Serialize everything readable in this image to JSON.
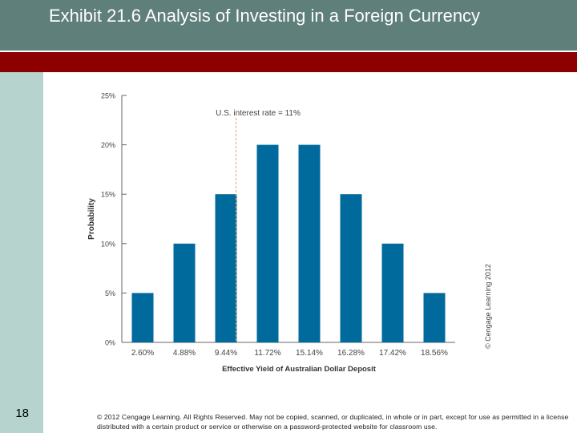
{
  "header": {
    "title_strong": "Exhibit 21.6",
    "title_rest": " Analysis of Investing in a Foreign Currency"
  },
  "slide_number": "18",
  "footer": {
    "copyright": "© 2012 Cengage Learning. All Rights Reserved. May not be copied, scanned, or duplicated, in whole or in part, except for use as permitted in a license distributed with a certain product or service or otherwise on a password-protected website for classroom use."
  },
  "colors": {
    "header_bg": "#5f7f7a",
    "red_band": "#8c0000",
    "side_bar": "#b6d3ce",
    "bar": "#006a9c",
    "reference_line": "#e8a46a"
  },
  "chart_data": {
    "type": "bar",
    "title": "",
    "xlabel": "Effective Yield of Australian Dollar Deposit",
    "ylabel": "Probability",
    "categories": [
      "2.60%",
      "4.88%",
      "9.44%",
      "11.72%",
      "15.14%",
      "16.28%",
      "17.42%",
      "18.56%"
    ],
    "values": [
      5,
      10,
      15,
      20,
      20,
      15,
      10,
      5
    ],
    "ylim": [
      0,
      25
    ],
    "yticks": [
      "0%",
      "5%",
      "10%",
      "15%",
      "20%",
      "25%"
    ],
    "yticks_values": [
      0,
      5,
      10,
      15,
      20,
      25
    ],
    "reference_line": {
      "label": "U.S. interest rate = 11%",
      "between_categories": [
        2,
        3
      ]
    },
    "credit": "© Cengage Learning 2012",
    "grid": false
  }
}
